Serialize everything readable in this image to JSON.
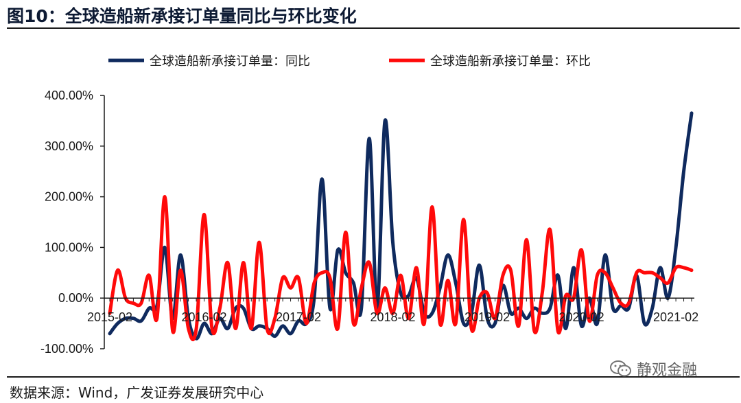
{
  "figure": {
    "title": "图10：全球造船新承接订单量同比与环比变化",
    "source": "数据来源：Wind，广发证券发展研究中心",
    "watermark": "静观金融",
    "watermark_icon": "wechat-icon"
  },
  "colors": {
    "yoy": "#0f2a5e",
    "mom": "#ff0a0a",
    "axis": "#1a1a1a"
  },
  "chart_data": {
    "type": "line",
    "title": "",
    "xlabel": "",
    "ylabel": "",
    "ylim": [
      -100,
      400
    ],
    "yticks": [
      -100,
      0,
      100,
      200,
      300,
      400
    ],
    "ytick_labels": [
      "-100.00%",
      "0.00%",
      "100.00%",
      "200.00%",
      "300.00%",
      "400.00%"
    ],
    "xtick_labels": [
      "2015-02",
      "2016-02",
      "2017-02",
      "2018-02",
      "2019-02",
      "2020-02",
      "2021-02"
    ],
    "legend_position": "top",
    "grid": false,
    "x": [
      "2015-02",
      "2015-03",
      "2015-04",
      "2015-05",
      "2015-06",
      "2015-07",
      "2015-08",
      "2015-09",
      "2015-10",
      "2015-11",
      "2015-12",
      "2016-01",
      "2016-02",
      "2016-03",
      "2016-04",
      "2016-05",
      "2016-06",
      "2016-07",
      "2016-08",
      "2016-09",
      "2016-10",
      "2016-11",
      "2016-12",
      "2017-01",
      "2017-02",
      "2017-03",
      "2017-04",
      "2017-05",
      "2017-06",
      "2017-07",
      "2017-08",
      "2017-09",
      "2017-10",
      "2017-11",
      "2017-12",
      "2018-01",
      "2018-02",
      "2018-03",
      "2018-04",
      "2018-05",
      "2018-06",
      "2018-07",
      "2018-08",
      "2018-09",
      "2018-10",
      "2018-11",
      "2018-12",
      "2019-01",
      "2019-02",
      "2019-03",
      "2019-04",
      "2019-05",
      "2019-06",
      "2019-07",
      "2019-08",
      "2019-09",
      "2019-10",
      "2019-11",
      "2019-12",
      "2020-01",
      "2020-02",
      "2020-03",
      "2020-04",
      "2020-05",
      "2020-06",
      "2020-07",
      "2020-08",
      "2020-09",
      "2020-10",
      "2020-11",
      "2020-12",
      "2021-01",
      "2021-02",
      "2021-03",
      "2021-04"
    ],
    "series": [
      {
        "name": "全球造船新承接订单量：同比",
        "color": "#0f2a5e",
        "values": [
          -70,
          -50,
          -40,
          -40,
          -45,
          -20,
          -15,
          100,
          -40,
          85,
          -40,
          -80,
          -50,
          -70,
          -40,
          -60,
          -20,
          -20,
          -60,
          -55,
          -60,
          -75,
          -55,
          -70,
          -45,
          -50,
          0,
          235,
          -20,
          95,
          50,
          30,
          -20,
          315,
          -20,
          350,
          110,
          10,
          5,
          40,
          -30,
          -30,
          20,
          85,
          30,
          -50,
          -30,
          65,
          -40,
          -50,
          25,
          -30,
          -20,
          -40,
          -20,
          -30,
          -20,
          45,
          -60,
          60,
          -55,
          0,
          -50,
          85,
          -20,
          -15,
          -20,
          45,
          -50,
          -20,
          60,
          0,
          100,
          250,
          365
        ]
      },
      {
        "name": "全球造船新承接订单量：环比",
        "color": "#ff0a0a",
        "values": [
          -30,
          55,
          0,
          -10,
          -10,
          45,
          -40,
          200,
          -65,
          55,
          -60,
          -60,
          165,
          -60,
          -20,
          70,
          -60,
          70,
          -60,
          110,
          -60,
          -40,
          40,
          20,
          40,
          -50,
          30,
          50,
          40,
          -60,
          130,
          -50,
          20,
          70,
          -30,
          20,
          -30,
          45,
          -40,
          60,
          -50,
          180,
          -50,
          35,
          -50,
          155,
          -60,
          0,
          10,
          -40,
          45,
          55,
          -55,
          115,
          -65,
          10,
          135,
          -65,
          5,
          0,
          95,
          -45,
          45,
          50,
          20,
          -10,
          -10,
          50,
          50,
          50,
          40,
          30,
          60,
          60,
          55
        ]
      }
    ]
  }
}
